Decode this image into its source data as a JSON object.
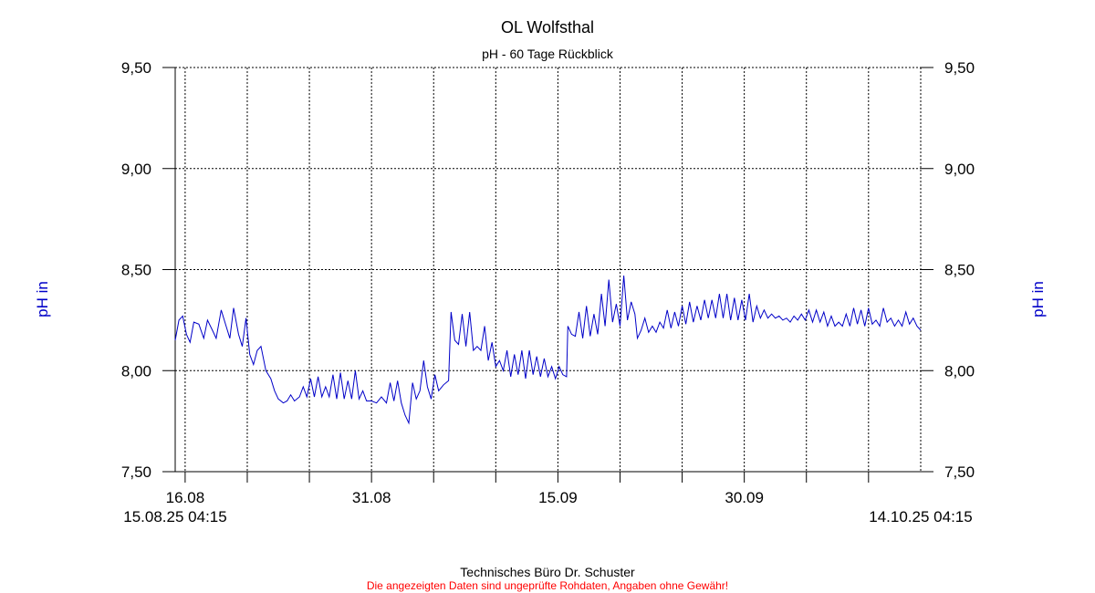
{
  "chart_data": {
    "type": "line",
    "title": "OL Wolfsthal",
    "subtitle": "pH - 60 Tage Rückblick",
    "ylabel_left": "pH in",
    "ylabel_right": "pH in",
    "ylim": [
      7.5,
      9.5
    ],
    "yticks": [
      9.5,
      9.0,
      8.5,
      8.0,
      7.5
    ],
    "ytick_labels": [
      "9,50",
      "9,00",
      "8,50",
      "8,00",
      "7,50"
    ],
    "x_range_days": [
      0,
      60
    ],
    "x_start_label": "15.08.25 04:15",
    "x_end_label": "14.10.25 04:15",
    "x_labeled_ticks": [
      {
        "day": 0.8,
        "label": "16.08"
      },
      {
        "day": 15.8,
        "label": "31.08"
      },
      {
        "day": 30.8,
        "label": "15.09"
      },
      {
        "day": 45.8,
        "label": "30.09"
      }
    ],
    "x_minor_ticks": [
      0.8,
      5.8,
      10.8,
      15.8,
      20.8,
      25.8,
      30.8,
      35.8,
      40.8,
      45.8,
      50.8,
      55.8
    ],
    "grid": true,
    "line_color": "#0000c8",
    "series": [
      {
        "values": [
          [
            0,
            8.15
          ],
          [
            0.3,
            8.25
          ],
          [
            0.6,
            8.27
          ],
          [
            0.9,
            8.18
          ],
          [
            1.2,
            8.14
          ],
          [
            1.5,
            8.24
          ],
          [
            1.9,
            8.23
          ],
          [
            2.3,
            8.16
          ],
          [
            2.6,
            8.25
          ],
          [
            3,
            8.2
          ],
          [
            3.3,
            8.16
          ],
          [
            3.7,
            8.3
          ],
          [
            4.1,
            8.22
          ],
          [
            4.4,
            8.16
          ],
          [
            4.7,
            8.31
          ],
          [
            5.1,
            8.18
          ],
          [
            5.4,
            8.12
          ],
          [
            5.7,
            8.26
          ],
          [
            6,
            8.08
          ],
          [
            6.3,
            8.03
          ],
          [
            6.6,
            8.1
          ],
          [
            6.9,
            8.12
          ],
          [
            7.3,
            8.0
          ],
          [
            7.7,
            7.96
          ],
          [
            8,
            7.9
          ],
          [
            8.3,
            7.86
          ],
          [
            8.7,
            7.84
          ],
          [
            9,
            7.85
          ],
          [
            9.3,
            7.88
          ],
          [
            9.6,
            7.85
          ],
          [
            10,
            7.87
          ],
          [
            10.3,
            7.92
          ],
          [
            10.6,
            7.87
          ],
          [
            10.9,
            7.96
          ],
          [
            11.2,
            7.87
          ],
          [
            11.5,
            7.97
          ],
          [
            11.8,
            7.87
          ],
          [
            12.1,
            7.92
          ],
          [
            12.4,
            7.87
          ],
          [
            12.7,
            7.98
          ],
          [
            13,
            7.86
          ],
          [
            13.3,
            7.99
          ],
          [
            13.6,
            7.86
          ],
          [
            13.9,
            7.95
          ],
          [
            14.2,
            7.86
          ],
          [
            14.5,
            8.0
          ],
          [
            14.8,
            7.86
          ],
          [
            15.1,
            7.9
          ],
          [
            15.4,
            7.85
          ],
          [
            15.8,
            7.85
          ],
          [
            16.2,
            7.84
          ],
          [
            16.6,
            7.87
          ],
          [
            17,
            7.84
          ],
          [
            17.3,
            7.94
          ],
          [
            17.6,
            7.85
          ],
          [
            17.9,
            7.95
          ],
          [
            18.2,
            7.84
          ],
          [
            18.5,
            7.78
          ],
          [
            18.8,
            7.74
          ],
          [
            19.1,
            7.94
          ],
          [
            19.4,
            7.86
          ],
          [
            19.7,
            7.9
          ],
          [
            20,
            8.05
          ],
          [
            20.3,
            7.92
          ],
          [
            20.6,
            7.86
          ],
          [
            20.9,
            7.98
          ],
          [
            21.2,
            7.9
          ],
          [
            21.6,
            7.93
          ],
          [
            22,
            7.95
          ],
          [
            22.2,
            8.29
          ],
          [
            22.5,
            8.15
          ],
          [
            22.8,
            8.13
          ],
          [
            23.1,
            8.28
          ],
          [
            23.4,
            8.12
          ],
          [
            23.7,
            8.29
          ],
          [
            24,
            8.1
          ],
          [
            24.3,
            8.12
          ],
          [
            24.6,
            8.1
          ],
          [
            24.9,
            8.22
          ],
          [
            25.2,
            8.05
          ],
          [
            25.5,
            8.14
          ],
          [
            25.8,
            8.02
          ],
          [
            26.1,
            8.05
          ],
          [
            26.4,
            8.0
          ],
          [
            26.7,
            8.1
          ],
          [
            27,
            7.97
          ],
          [
            27.3,
            8.08
          ],
          [
            27.6,
            7.98
          ],
          [
            27.9,
            8.1
          ],
          [
            28.2,
            7.96
          ],
          [
            28.5,
            8.1
          ],
          [
            28.8,
            7.98
          ],
          [
            29.1,
            8.07
          ],
          [
            29.4,
            7.97
          ],
          [
            29.7,
            8.06
          ],
          [
            30,
            7.97
          ],
          [
            30.3,
            8.02
          ],
          [
            30.6,
            7.96
          ],
          [
            30.9,
            8.02
          ],
          [
            31.2,
            7.98
          ],
          [
            31.5,
            7.97
          ],
          [
            31.6,
            8.22
          ],
          [
            31.9,
            8.18
          ],
          [
            32.2,
            8.17
          ],
          [
            32.5,
            8.29
          ],
          [
            32.8,
            8.16
          ],
          [
            33.1,
            8.32
          ],
          [
            33.4,
            8.17
          ],
          [
            33.7,
            8.28
          ],
          [
            34,
            8.18
          ],
          [
            34.3,
            8.38
          ],
          [
            34.6,
            8.22
          ],
          [
            34.9,
            8.45
          ],
          [
            35.2,
            8.24
          ],
          [
            35.5,
            8.33
          ],
          [
            35.8,
            8.22
          ],
          [
            36.1,
            8.47
          ],
          [
            36.4,
            8.25
          ],
          [
            36.7,
            8.34
          ],
          [
            37,
            8.28
          ],
          [
            37.2,
            8.16
          ],
          [
            37.5,
            8.2
          ],
          [
            37.8,
            8.26
          ],
          [
            38.1,
            8.19
          ],
          [
            38.4,
            8.22
          ],
          [
            38.7,
            8.19
          ],
          [
            39,
            8.24
          ],
          [
            39.3,
            8.21
          ],
          [
            39.6,
            8.3
          ],
          [
            39.9,
            8.21
          ],
          [
            40.2,
            8.29
          ],
          [
            40.5,
            8.22
          ],
          [
            40.8,
            8.32
          ],
          [
            41.1,
            8.23
          ],
          [
            41.4,
            8.34
          ],
          [
            41.7,
            8.24
          ],
          [
            42,
            8.32
          ],
          [
            42.3,
            8.25
          ],
          [
            42.6,
            8.35
          ],
          [
            42.9,
            8.26
          ],
          [
            43.2,
            8.35
          ],
          [
            43.5,
            8.26
          ],
          [
            43.8,
            8.38
          ],
          [
            44.1,
            8.26
          ],
          [
            44.4,
            8.38
          ],
          [
            44.7,
            8.25
          ],
          [
            45,
            8.36
          ],
          [
            45.3,
            8.25
          ],
          [
            45.6,
            8.35
          ],
          [
            45.9,
            8.25
          ],
          [
            46.2,
            8.38
          ],
          [
            46.5,
            8.24
          ],
          [
            46.8,
            8.32
          ],
          [
            47.1,
            8.26
          ],
          [
            47.4,
            8.3
          ],
          [
            47.7,
            8.26
          ],
          [
            48,
            8.28
          ],
          [
            48.3,
            8.26
          ],
          [
            48.6,
            8.27
          ],
          [
            48.9,
            8.25
          ],
          [
            49.2,
            8.26
          ],
          [
            49.5,
            8.24
          ],
          [
            49.8,
            8.27
          ],
          [
            50.1,
            8.25
          ],
          [
            50.4,
            8.28
          ],
          [
            50.7,
            8.25
          ],
          [
            51,
            8.3
          ],
          [
            51.3,
            8.24
          ],
          [
            51.6,
            8.3
          ],
          [
            51.9,
            8.24
          ],
          [
            52.2,
            8.29
          ],
          [
            52.5,
            8.22
          ],
          [
            52.8,
            8.27
          ],
          [
            53.1,
            8.22
          ],
          [
            53.4,
            8.24
          ],
          [
            53.7,
            8.22
          ],
          [
            54,
            8.28
          ],
          [
            54.3,
            8.22
          ],
          [
            54.6,
            8.31
          ],
          [
            54.9,
            8.23
          ],
          [
            55.2,
            8.3
          ],
          [
            55.5,
            8.22
          ],
          [
            55.8,
            8.31
          ],
          [
            56.1,
            8.23
          ],
          [
            56.4,
            8.25
          ],
          [
            56.7,
            8.22
          ],
          [
            57,
            8.31
          ],
          [
            57.3,
            8.24
          ],
          [
            57.6,
            8.26
          ],
          [
            57.9,
            8.22
          ],
          [
            58.2,
            8.25
          ],
          [
            58.5,
            8.22
          ],
          [
            58.8,
            8.29
          ],
          [
            59.1,
            8.23
          ],
          [
            59.4,
            8.26
          ],
          [
            59.7,
            8.22
          ],
          [
            60,
            8.2
          ]
        ]
      }
    ]
  },
  "footer": {
    "company": "Technisches Büro Dr. Schuster",
    "disclaimer": "Die angezeigten Daten sind ungeprüfte Rohdaten, Angaben ohne Gewähr!",
    "disclaimer_color": "#ff0000"
  }
}
